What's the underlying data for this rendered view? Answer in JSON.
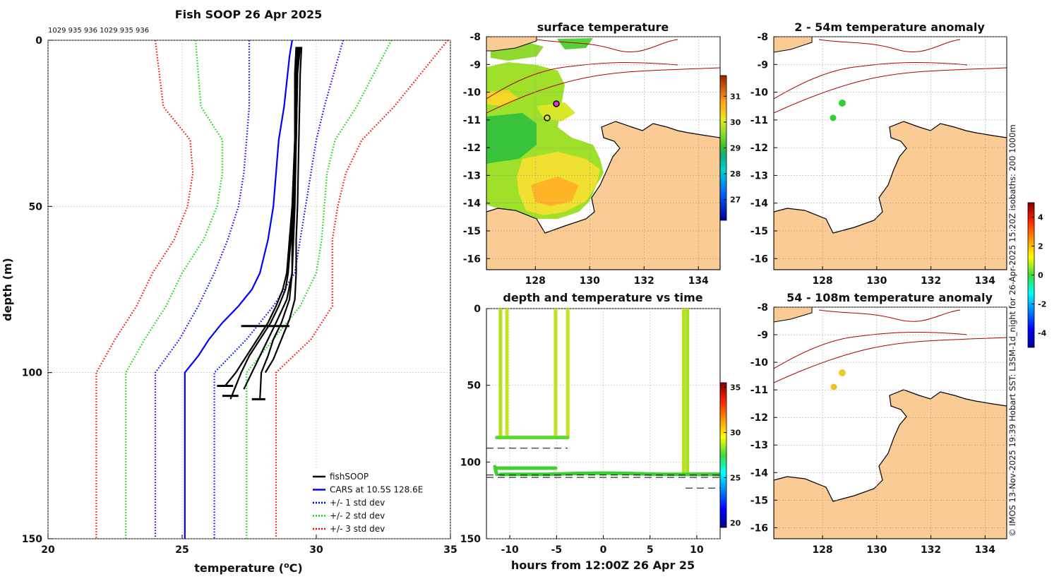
{
  "chart_data": [
    {
      "id": "profile",
      "type": "line",
      "title": "Fish SOOP 26 Apr 2025",
      "subtitle": "1029 935 936 1029 935 936",
      "xlabel_main": "temperature (",
      "xlabel_unit": "o",
      "xlabel_end": "C)",
      "ylabel": "depth (m)",
      "xlim": [
        20,
        35
      ],
      "ylim": [
        0,
        150
      ],
      "xticks": [
        "20",
        "25",
        "30",
        "35"
      ],
      "yticks": [
        "0",
        "50",
        "100",
        "150"
      ],
      "legend": [
        {
          "label": "fishSOOP",
          "color": "#000000",
          "style": "solid"
        },
        {
          "label": "CARS at 10.5S 128.6E",
          "color": "#0000ff",
          "style": "solid"
        },
        {
          "label": "+/- 1 std dev",
          "color": "#0000ff",
          "style": "dotted"
        },
        {
          "label": "+/- 2 std dev",
          "color": "#00dd00",
          "style": "dotted"
        },
        {
          "label": "+/- 3 std dev",
          "color": "#ff0000",
          "style": "dotted"
        }
      ],
      "series": [
        {
          "name": "CARS mean",
          "depth": [
            0,
            5,
            20,
            30,
            40,
            50,
            60,
            70,
            75,
            80,
            85,
            90,
            95,
            100,
            110,
            150
          ],
          "temp": [
            29.1,
            29.0,
            28.8,
            28.6,
            28.5,
            28.4,
            28.2,
            27.9,
            27.6,
            27.1,
            26.5,
            26.0,
            25.6,
            25.1,
            25.1,
            25.1
          ]
        },
        {
          "name": "-1 std",
          "depth": [
            0,
            20,
            30,
            40,
            50,
            60,
            70,
            80,
            90,
            100,
            150
          ],
          "temp": [
            27.5,
            27.5,
            27.4,
            27.3,
            27.1,
            26.7,
            26.2,
            25.6,
            24.9,
            24.0,
            24.0
          ]
        },
        {
          "name": "+1 std",
          "depth": [
            0,
            20,
            30,
            40,
            50,
            60,
            70,
            80,
            90,
            100,
            150
          ],
          "temp": [
            31.0,
            30.3,
            30.0,
            29.8,
            29.6,
            29.4,
            29.2,
            28.4,
            27.4,
            26.2,
            26.2
          ]
        },
        {
          "name": "-2 std",
          "depth": [
            0,
            20,
            30,
            40,
            50,
            60,
            70,
            80,
            90,
            100,
            150
          ],
          "temp": [
            25.5,
            25.7,
            26.5,
            26.5,
            26.3,
            25.8,
            25.0,
            24.4,
            23.6,
            22.9,
            22.9
          ]
        },
        {
          "name": "+2 std",
          "depth": [
            0,
            20,
            30,
            40,
            50,
            60,
            70,
            80,
            90,
            100,
            150
          ],
          "temp": [
            32.8,
            31.5,
            30.7,
            30.4,
            30.3,
            30.2,
            30.0,
            29.4,
            28.4,
            27.4,
            27.4
          ]
        },
        {
          "name": "-3 std",
          "depth": [
            0,
            20,
            30,
            40,
            50,
            60,
            70,
            80,
            90,
            100,
            150
          ],
          "temp": [
            24.0,
            24.3,
            25.3,
            25.4,
            25.2,
            24.7,
            23.9,
            23.3,
            22.5,
            21.8,
            21.8
          ]
        },
        {
          "name": "+3 std",
          "depth": [
            0,
            20,
            30,
            40,
            50,
            60,
            70,
            80,
            90,
            100,
            150
          ],
          "temp": [
            34.9,
            32.9,
            31.7,
            31.1,
            30.8,
            30.6,
            30.6,
            30.6,
            29.8,
            28.5,
            28.5
          ]
        },
        {
          "name": "fishSOOP 1",
          "depth": [
            2,
            10,
            30,
            50,
            60,
            70,
            75,
            80,
            85,
            90,
            95,
            100,
            104
          ],
          "temp": [
            29.3,
            29.25,
            29.2,
            29.1,
            29.0,
            28.9,
            28.75,
            28.5,
            28.2,
            27.8,
            27.4,
            27.0,
            26.6
          ]
        },
        {
          "name": "fishSOOP 2",
          "depth": [
            2,
            10,
            30,
            50,
            60,
            70,
            75,
            80,
            85,
            90,
            95,
            100,
            108
          ],
          "temp": [
            29.35,
            29.3,
            29.25,
            29.15,
            29.05,
            28.95,
            28.85,
            28.6,
            28.3,
            27.9,
            27.5,
            27.2,
            26.8
          ]
        },
        {
          "name": "fishSOOP 3",
          "depth": [
            2,
            10,
            30,
            50,
            60,
            70,
            78,
            85,
            90,
            95,
            100,
            105
          ],
          "temp": [
            29.4,
            29.3,
            29.25,
            29.2,
            29.15,
            29.1,
            28.9,
            28.5,
            28.2,
            27.9,
            27.6,
            27.3
          ]
        },
        {
          "name": "fishSOOP 4",
          "depth": [
            2,
            10,
            30,
            50,
            60,
            70,
            78,
            85,
            90,
            95,
            100,
            108
          ],
          "temp": [
            29.25,
            29.2,
            29.2,
            29.15,
            29.1,
            29.1,
            29.0,
            28.7,
            28.4,
            28.2,
            27.95,
            27.9
          ]
        },
        {
          "name": "fishSOOP 5",
          "depth": [
            2,
            10,
            30,
            50,
            60,
            70,
            78,
            84,
            88,
            92,
            96,
            100
          ],
          "temp": [
            29.45,
            29.4,
            29.35,
            29.3,
            29.25,
            29.25,
            29.2,
            29.0,
            28.8,
            28.6,
            28.4,
            28.1
          ]
        }
      ],
      "markers": [
        {
          "type": "short-line",
          "depth": 86,
          "temp_from": 27.2,
          "temp_to": 29.0
        },
        {
          "type": "short-line",
          "depth": 104,
          "temp_from": 26.3,
          "temp_to": 26.9
        },
        {
          "type": "short-line",
          "depth": 107,
          "temp_from": 26.5,
          "temp_to": 27.1
        },
        {
          "type": "short-line",
          "depth": 108,
          "temp_from": 27.6,
          "temp_to": 28.1
        }
      ]
    },
    {
      "id": "sst",
      "type": "heatmap",
      "title": "surface temperature",
      "xticks": [
        "128",
        "130",
        "132",
        "134"
      ],
      "yticks": [
        "-8",
        "-9",
        "-10",
        "-11",
        "-12",
        "-13",
        "-14",
        "-15",
        "-16"
      ],
      "xlim": [
        126.2,
        134.8
      ],
      "ylim": [
        -16.4,
        -8
      ],
      "colorbar": {
        "ticks": [
          "27",
          "28",
          "29",
          "30",
          "31"
        ],
        "range": [
          26.2,
          31.8
        ]
      }
    },
    {
      "id": "anom1",
      "type": "heatmap",
      "title": "2 - 54m temperature anomaly",
      "xticks": [
        "128",
        "130",
        "132",
        "134"
      ],
      "yticks": [
        "-8",
        "-9",
        "-10",
        "-11",
        "-12",
        "-13",
        "-14",
        "-15",
        "-16"
      ],
      "xlim": [
        126.2,
        134.8
      ],
      "ylim": [
        -16.4,
        -8
      ]
    },
    {
      "id": "anom2",
      "type": "heatmap",
      "title": "54 - 108m temperature anomaly",
      "xticks": [
        "128",
        "130",
        "132",
        "134"
      ],
      "yticks": [
        "-8",
        "-9",
        "-10",
        "-11",
        "-12",
        "-13",
        "-14",
        "-15",
        "-16"
      ],
      "xlim": [
        126.2,
        134.8
      ],
      "ylim": [
        -16.4,
        -8
      ],
      "colorbar": {
        "ticks": [
          "4",
          "2",
          "0",
          "-2",
          "-4"
        ],
        "range": [
          -5,
          5
        ]
      }
    },
    {
      "id": "timeplot",
      "type": "scatter",
      "title": "depth and temperature vs time",
      "xlabel": "hours from 12:00Z 26 Apr 25",
      "xlim": [
        -12.5,
        12.5
      ],
      "ylim": [
        0,
        150
      ],
      "xticks": [
        "-10",
        "-5",
        "0",
        "5",
        "10"
      ],
      "yticks": [
        "0",
        "50",
        "100",
        "150"
      ],
      "colorbar": {
        "ticks": [
          "35",
          "30",
          "25",
          "20"
        ],
        "range": [
          19.5,
          35.5
        ]
      }
    }
  ],
  "credit": "© IMOS 13-Nov-2025 19:39 Hobart SST: L3SM-1d_night for 26-Apr-2025 15:20Z isobaths: 200  1000m"
}
